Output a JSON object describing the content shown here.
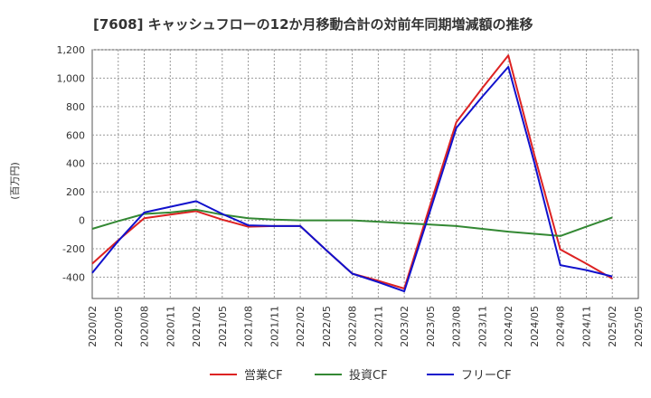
{
  "chart_data": {
    "type": "line",
    "title": "[7608]  キャッシュフローの12か月移動合計の対前年同期増減額の推移",
    "ylabel": "(百万円)",
    "xlabel": "",
    "ylim": [
      -550,
      1200
    ],
    "yticks": [
      -400,
      -200,
      0,
      200,
      400,
      600,
      800,
      1000,
      1200
    ],
    "ytick_labels": [
      "-400",
      "-200",
      "0",
      "200",
      "400",
      "600",
      "800",
      "1,000",
      "1,200"
    ],
    "categories": [
      "2020/02",
      "2020/05",
      "2020/08",
      "2020/11",
      "2021/02",
      "2021/05",
      "2021/08",
      "2021/11",
      "2022/02",
      "2022/05",
      "2022/08",
      "2022/11",
      "2023/02",
      "2023/05",
      "2023/08",
      "2023/11",
      "2024/02",
      "2024/05",
      "2024/08",
      "2024/11",
      "2025/02",
      "2025/05"
    ],
    "series": [
      {
        "name": "営業CF",
        "color": "#dd2222",
        "values": [
          -305,
          -140,
          15,
          40,
          65,
          5,
          -45,
          -40,
          -40,
          -210,
          -375,
          -425,
          -480,
          110,
          690,
          930,
          1160,
          460,
          -205,
          -305,
          -410,
          null
        ]
      },
      {
        "name": "投資CF",
        "color": "#338833",
        "values": [
          -60,
          -5,
          45,
          55,
          75,
          40,
          15,
          5,
          0,
          0,
          0,
          -10,
          -20,
          -30,
          -40,
          -60,
          -80,
          -95,
          -110,
          -45,
          20,
          null
        ]
      },
      {
        "name": "フリーCF",
        "color": "#1111cc",
        "values": [
          -370,
          -145,
          55,
          95,
          135,
          45,
          -35,
          -40,
          -40,
          -210,
          -375,
          -435,
          -500,
          70,
          650,
          870,
          1080,
          405,
          -315,
          -350,
          -395,
          null
        ]
      }
    ]
  }
}
